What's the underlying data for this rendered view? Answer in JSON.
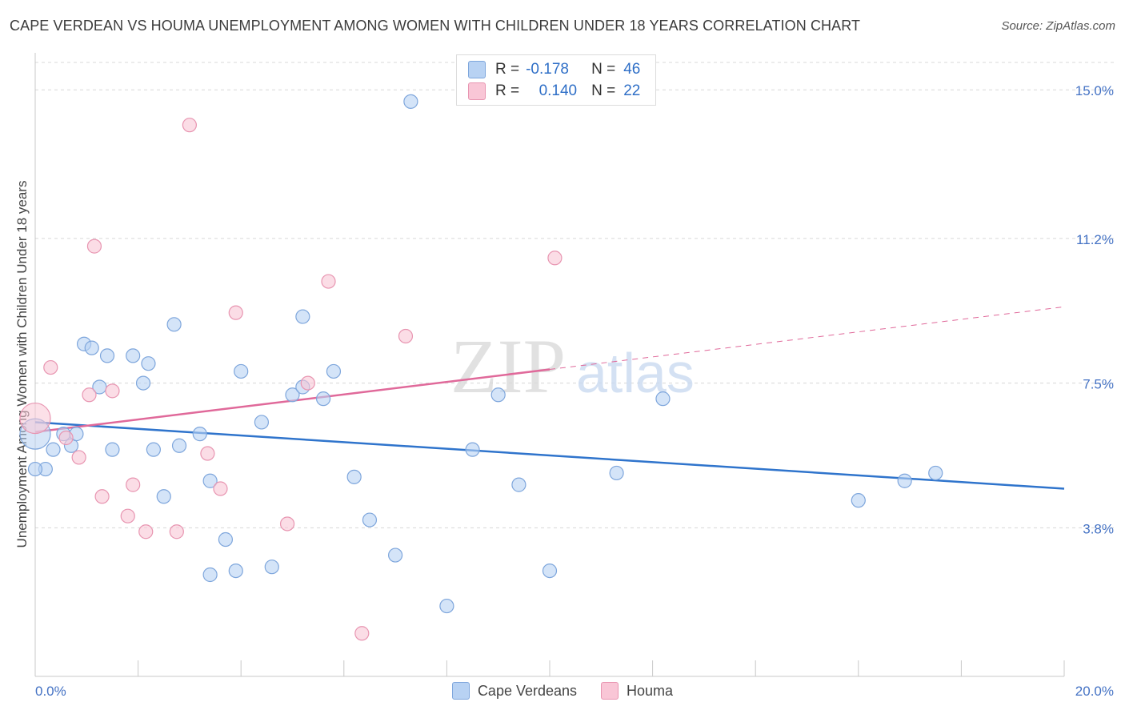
{
  "title": "CAPE VERDEAN VS HOUMA UNEMPLOYMENT AMONG WOMEN WITH CHILDREN UNDER 18 YEARS CORRELATION CHART",
  "source": "Source: ZipAtlas.com",
  "watermark": {
    "zip": "ZIP",
    "atlas": "atlas"
  },
  "stats_legend": {
    "rows": [
      {
        "r_label": "R =",
        "r_value": "-0.178",
        "n_label": "N =",
        "n_value": "46"
      },
      {
        "r_label": "R =",
        "r_value": "0.140",
        "n_label": "N =",
        "n_value": "22"
      }
    ]
  },
  "bottom_legend": {
    "cape": "Cape Verdeans",
    "houma": "Houma"
  },
  "colors": {
    "cape_fill": "#b8d2f3",
    "cape_stroke": "#7ea6dc",
    "cape_line": "#2f74cc",
    "houma_fill": "#f9c6d6",
    "houma_stroke": "#e895b1",
    "houma_line": "#e0699a",
    "tick_label": "#4472c4",
    "grid": "#d8d8d8"
  },
  "chart_data": {
    "type": "scatter",
    "title": "CAPE VERDEAN VS HOUMA UNEMPLOYMENT AMONG WOMEN WITH CHILDREN UNDER 18 YEARS CORRELATION CHART",
    "xlabel": "",
    "ylabel": "Unemployment Among Women with Children Under 18 years",
    "xlim": [
      0,
      20
    ],
    "ylim": [
      0,
      15.7
    ],
    "x_tick_labels": [
      "0.0%",
      "20.0%"
    ],
    "y_ticks": [
      3.8,
      7.5,
      11.2,
      15.0
    ],
    "y_tick_labels": [
      "3.8%",
      "7.5%",
      "11.2%",
      "15.0%"
    ],
    "grid": true,
    "legend_position": "top-center",
    "series": [
      {
        "name": "Cape Verdeans",
        "points": [
          [
            0.0,
            6.2
          ],
          [
            0.2,
            5.3
          ],
          [
            0.35,
            5.8
          ],
          [
            0.55,
            6.2
          ],
          [
            0.7,
            5.9
          ],
          [
            0.8,
            6.2
          ],
          [
            0.95,
            8.5
          ],
          [
            1.1,
            8.4
          ],
          [
            1.25,
            7.4
          ],
          [
            1.4,
            8.2
          ],
          [
            1.5,
            5.8
          ],
          [
            1.9,
            8.2
          ],
          [
            2.1,
            7.5
          ],
          [
            2.2,
            8.0
          ],
          [
            2.3,
            5.8
          ],
          [
            2.5,
            4.6
          ],
          [
            2.7,
            9.0
          ],
          [
            2.8,
            5.9
          ],
          [
            3.2,
            6.2
          ],
          [
            3.4,
            5.0
          ],
          [
            3.4,
            2.6
          ],
          [
            3.7,
            3.5
          ],
          [
            3.9,
            2.7
          ],
          [
            4.0,
            7.8
          ],
          [
            4.4,
            6.5
          ],
          [
            4.6,
            2.8
          ],
          [
            5.0,
            7.2
          ],
          [
            5.2,
            7.4
          ],
          [
            5.2,
            9.2
          ],
          [
            5.6,
            7.1
          ],
          [
            5.8,
            7.8
          ],
          [
            6.2,
            5.1
          ],
          [
            6.5,
            4.0
          ],
          [
            7.0,
            3.1
          ],
          [
            7.3,
            14.7
          ],
          [
            8.0,
            1.8
          ],
          [
            8.5,
            5.8
          ],
          [
            9.0,
            7.2
          ],
          [
            9.4,
            4.9
          ],
          [
            10.0,
            2.7
          ],
          [
            11.3,
            5.2
          ],
          [
            12.2,
            7.1
          ],
          [
            16.0,
            4.5
          ],
          [
            16.9,
            5.0
          ],
          [
            17.5,
            5.2
          ],
          [
            0.0,
            5.3
          ]
        ]
      },
      {
        "name": "Houma",
        "points": [
          [
            0.0,
            6.6
          ],
          [
            0.3,
            7.9
          ],
          [
            0.6,
            6.1
          ],
          [
            0.85,
            5.6
          ],
          [
            1.05,
            7.2
          ],
          [
            1.15,
            11.0
          ],
          [
            1.3,
            4.6
          ],
          [
            1.5,
            7.3
          ],
          [
            1.8,
            4.1
          ],
          [
            1.9,
            4.9
          ],
          [
            2.15,
            3.7
          ],
          [
            2.75,
            3.7
          ],
          [
            3.0,
            14.1
          ],
          [
            3.35,
            5.7
          ],
          [
            3.6,
            4.8
          ],
          [
            3.9,
            9.3
          ],
          [
            4.9,
            3.9
          ],
          [
            5.3,
            7.5
          ],
          [
            5.7,
            10.1
          ],
          [
            6.35,
            1.1
          ],
          [
            7.2,
            8.7
          ],
          [
            10.1,
            10.7
          ]
        ]
      }
    ],
    "trend_lines": [
      {
        "series": "Cape Verdeans",
        "x": [
          0,
          20
        ],
        "y": [
          6.5,
          4.8
        ],
        "style": "solid"
      },
      {
        "series": "Houma",
        "x": [
          0,
          10
        ],
        "y": [
          6.25,
          7.85
        ],
        "style": "solid"
      },
      {
        "series": "Houma",
        "x": [
          10,
          20
        ],
        "y": [
          7.85,
          9.45
        ],
        "style": "dashed"
      }
    ]
  }
}
